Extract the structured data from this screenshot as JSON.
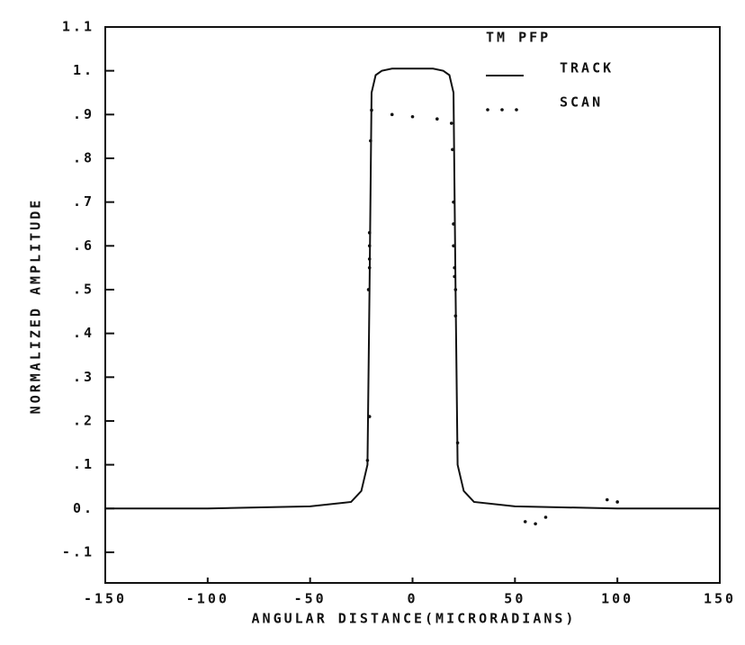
{
  "chart_data": {
    "type": "line",
    "title": "TM PFP",
    "x_label": "ANGULAR DISTANCE(MICRORADIANS)",
    "y_label": "NORMALIZED AMPLITUDE",
    "xlim": [
      -150,
      150
    ],
    "ylim": [
      -0.17,
      1.1
    ],
    "xticks": [
      -150,
      -100,
      -50,
      0,
      50,
      100,
      150
    ],
    "yticks": [
      {
        "value": 1.1,
        "label": "1.1"
      },
      {
        "value": 1.0,
        "label": "1."
      },
      {
        "value": 0.9,
        "label": ".9"
      },
      {
        "value": 0.8,
        "label": ".8"
      },
      {
        "value": 0.7,
        "label": ".7"
      },
      {
        "value": 0.6,
        "label": ".6"
      },
      {
        "value": 0.5,
        "label": ".5"
      },
      {
        "value": 0.4,
        "label": ".4"
      },
      {
        "value": 0.3,
        "label": ".3"
      },
      {
        "value": 0.2,
        "label": ".2"
      },
      {
        "value": 0.1,
        "label": ".1"
      },
      {
        "value": 0,
        "label": "0."
      },
      {
        "value": -0.1,
        "label": "-.1"
      }
    ],
    "legend": "top-right",
    "series": [
      {
        "name": "TRACK",
        "color": "#111111",
        "style": "solid",
        "x": [
          -150,
          -100,
          -50,
          -30,
          -25,
          -22,
          -21,
          -20,
          -18,
          -15,
          -10,
          -5,
          0,
          5,
          10,
          15,
          18,
          20,
          21,
          22,
          25,
          30,
          50,
          100,
          150
        ],
        "values": [
          0,
          0,
          0.005,
          0.015,
          0.04,
          0.1,
          0.5,
          0.95,
          0.99,
          1.0,
          1.005,
          1.005,
          1.005,
          1.005,
          1.005,
          1.0,
          0.99,
          0.95,
          0.5,
          0.1,
          0.04,
          0.015,
          0.005,
          0,
          0
        ]
      },
      {
        "name": "SCAN",
        "color": "#111111",
        "style": "dots",
        "x": [
          -20,
          -20.5,
          -21,
          -21,
          -21,
          -21,
          -21.5,
          -21,
          -22,
          -10,
          0,
          12,
          19,
          19.5,
          20,
          20,
          20,
          20.5,
          20.5,
          21,
          21,
          22,
          55,
          60,
          65,
          95,
          100
        ],
        "values": [
          0.91,
          0.84,
          0.63,
          0.6,
          0.57,
          0.55,
          0.5,
          0.21,
          0.11,
          0.9,
          0.895,
          0.89,
          0.88,
          0.82,
          0.7,
          0.65,
          0.6,
          0.55,
          0.53,
          0.5,
          0.44,
          0.15,
          -0.03,
          -0.035,
          -0.02,
          0.02,
          0.015
        ]
      }
    ]
  }
}
